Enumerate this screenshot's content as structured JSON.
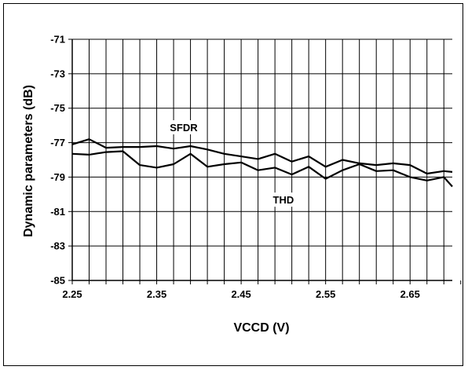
{
  "chart_data": {
    "type": "line",
    "title": "",
    "xlabel": "VCCD (V)",
    "ylabel": "Dynamic parameters (dB)",
    "xlim": [
      2.25,
      2.7
    ],
    "ylim": [
      -85,
      -71
    ],
    "x_ticks": [
      "2.25",
      "2.35",
      "2.45",
      "2.55",
      "2.65"
    ],
    "y_ticks": [
      "-71",
      "-73",
      "-75",
      "-77",
      "-79",
      "-81",
      "-83",
      "-85"
    ],
    "grid": true,
    "legend": "none",
    "series": [
      {
        "name": "SFDR",
        "color": "#000000",
        "x": [
          2.25,
          2.27,
          2.29,
          2.31,
          2.33,
          2.35,
          2.37,
          2.39,
          2.41,
          2.43,
          2.45,
          2.47,
          2.49,
          2.51,
          2.53,
          2.55,
          2.57,
          2.59,
          2.61,
          2.63,
          2.65,
          2.67,
          2.69,
          2.7
        ],
        "values": [
          -77.1,
          -76.8,
          -77.3,
          -77.25,
          -77.25,
          -77.2,
          -77.35,
          -77.2,
          -77.4,
          -77.65,
          -77.8,
          -77.95,
          -77.65,
          -78.1,
          -77.8,
          -78.4,
          -78.0,
          -78.2,
          -78.3,
          -78.2,
          -78.3,
          -78.8,
          -78.65,
          -78.7
        ]
      },
      {
        "name": "THD",
        "color": "#000000",
        "x": [
          2.25,
          2.27,
          2.29,
          2.31,
          2.33,
          2.35,
          2.37,
          2.39,
          2.41,
          2.43,
          2.45,
          2.47,
          2.49,
          2.51,
          2.53,
          2.55,
          2.57,
          2.59,
          2.61,
          2.63,
          2.65,
          2.67,
          2.69,
          2.7
        ],
        "values": [
          -77.65,
          -77.7,
          -77.55,
          -77.5,
          -78.3,
          -78.45,
          -78.25,
          -77.65,
          -78.4,
          -78.25,
          -78.15,
          -78.6,
          -78.45,
          -78.85,
          -78.4,
          -79.1,
          -78.6,
          -78.25,
          -78.65,
          -78.6,
          -79.0,
          -79.2,
          -79.0,
          -79.55
        ]
      }
    ],
    "annotations": [
      {
        "text": "SFDR",
        "x": 2.382,
        "y": -76.2
      },
      {
        "text": "THD",
        "x": 2.5,
        "y": -80.4
      }
    ]
  }
}
